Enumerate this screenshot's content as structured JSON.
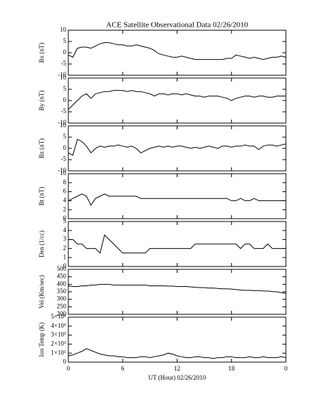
{
  "chart_data": [
    {
      "type": "line",
      "title": "ACE Satellite Observational Data   02/26/2010",
      "ylabel": "Bx (nT)",
      "color": "#000000",
      "x": [
        0,
        0.5,
        1,
        1.5,
        2,
        2.5,
        3,
        3.5,
        4,
        4.5,
        5,
        5.5,
        6,
        6.5,
        7,
        7.5,
        8,
        8.5,
        9,
        9.5,
        10,
        10.5,
        11,
        11.5,
        12,
        12.5,
        13,
        13.5,
        14,
        14.5,
        15,
        15.5,
        16,
        16.5,
        17,
        17.5,
        18,
        18.5,
        19,
        19.5,
        20,
        20.5,
        21,
        21.5,
        22,
        22.5,
        23,
        23.5,
        24
      ],
      "values": [
        -1,
        -2,
        2,
        2.5,
        2.5,
        2,
        3,
        4,
        4.5,
        4.5,
        4,
        3.5,
        3.5,
        3,
        3,
        3.5,
        3,
        2.5,
        2,
        1,
        -0.5,
        -1,
        -1.5,
        -2,
        -2,
        -1.5,
        -2,
        -2.5,
        -3,
        -3,
        -3,
        -3,
        -3,
        -3,
        -3,
        -2.5,
        -2.5,
        -1,
        -1.5,
        -2,
        -2.5,
        -2,
        -2.5,
        -3,
        -2.5,
        -2,
        -2,
        -1.5,
        -2
      ],
      "xlim": [
        0,
        24
      ],
      "xticks": [
        0,
        6,
        12,
        18,
        {
          "value": 24,
          "label": "0"
        }
      ],
      "ylim": [
        -10,
        10
      ],
      "yticks": [
        -10,
        -5,
        0,
        5,
        10
      ]
    },
    {
      "type": "line",
      "ylabel": "By (nT)",
      "color": "#000000",
      "x": [
        0,
        0.5,
        1,
        1.5,
        2,
        2.5,
        3,
        3.5,
        4,
        4.5,
        5,
        5.5,
        6,
        6.5,
        7,
        7.5,
        8,
        8.5,
        9,
        9.5,
        10,
        10.5,
        11,
        11.5,
        12,
        12.5,
        13,
        13.5,
        14,
        14.5,
        15,
        15.5,
        16,
        16.5,
        17,
        17.5,
        18,
        18.5,
        19,
        19.5,
        20,
        20.5,
        21,
        21.5,
        22,
        22.5,
        23,
        23.5,
        24
      ],
      "values": [
        -4,
        -2,
        0,
        2,
        3,
        1,
        3,
        3.5,
        4,
        4,
        4.5,
        4.5,
        4.5,
        4,
        4.5,
        4,
        4,
        3.5,
        3,
        2,
        3,
        3,
        2.5,
        3,
        3,
        2.5,
        3,
        2.5,
        2,
        2,
        1.5,
        2,
        2,
        2,
        1.5,
        1,
        0,
        1,
        1.5,
        2,
        2,
        1.5,
        2,
        2,
        1.5,
        1.5,
        2,
        2,
        2
      ],
      "xlim": [
        0,
        24
      ],
      "xticks": [
        0,
        6,
        12,
        18,
        {
          "value": 24,
          "label": "0"
        }
      ],
      "ylim": [
        -10,
        10
      ],
      "yticks": [
        -10,
        -5,
        0,
        5,
        10
      ]
    },
    {
      "type": "line",
      "ylabel": "Bz (nT)",
      "color": "#000000",
      "x": [
        0,
        0.5,
        1,
        1.5,
        2,
        2.5,
        3,
        3.5,
        4,
        4.5,
        5,
        5.5,
        6,
        6.5,
        7,
        7.5,
        8,
        8.5,
        9,
        9.5,
        10,
        10.5,
        11,
        11.5,
        12,
        12.5,
        13,
        13.5,
        14,
        14.5,
        15,
        15.5,
        16,
        16.5,
        17,
        17.5,
        18,
        18.5,
        19,
        19.5,
        20,
        20.5,
        21,
        21.5,
        22,
        22.5,
        23,
        23.5,
        24
      ],
      "values": [
        -2,
        -3,
        4,
        3,
        1,
        -2,
        0,
        1,
        0.5,
        1,
        1,
        1.5,
        1,
        0.5,
        1,
        0,
        -2,
        -1,
        0,
        0.5,
        1,
        0.5,
        1,
        0.5,
        1,
        1,
        0.5,
        0,
        0.5,
        0,
        0.5,
        1,
        0.5,
        0,
        1,
        1,
        0.5,
        1,
        1,
        1.5,
        1,
        1,
        -0.5,
        1,
        1.5,
        1.5,
        1,
        1.5,
        2
      ],
      "xlim": [
        0,
        24
      ],
      "xticks": [
        0,
        6,
        12,
        18,
        {
          "value": 24,
          "label": "0"
        }
      ],
      "ylim": [
        -10,
        10
      ],
      "yticks": [
        -10,
        -5,
        0,
        5,
        10
      ]
    },
    {
      "type": "line",
      "ylabel": "Bt (nT)",
      "color": "#000000",
      "x": [
        0,
        0.5,
        1,
        1.5,
        2,
        2.5,
        3,
        3.5,
        4,
        4.5,
        5,
        5.5,
        6,
        6.5,
        7,
        7.5,
        8,
        8.5,
        9,
        9.5,
        10,
        10.5,
        11,
        11.5,
        12,
        12.5,
        13,
        13.5,
        14,
        14.5,
        15,
        15.5,
        16,
        16.5,
        17,
        17.5,
        18,
        18.5,
        19,
        19.5,
        20,
        20.5,
        21,
        21.5,
        22,
        22.5,
        23,
        23.5,
        24
      ],
      "values": [
        4,
        4.5,
        5,
        5.5,
        5,
        3,
        4.5,
        5,
        5.5,
        5,
        5,
        5,
        5,
        5,
        5,
        5,
        4.5,
        4.5,
        4.5,
        4.5,
        4.5,
        4.5,
        4.5,
        4.5,
        4.5,
        4.5,
        4.5,
        4.5,
        4.5,
        4.5,
        4.5,
        4.5,
        4.5,
        4.5,
        4.5,
        4.5,
        4,
        4,
        4.5,
        4,
        4,
        4.5,
        4,
        4,
        4,
        4,
        4,
        4,
        4
      ],
      "xlim": [
        0,
        24
      ],
      "xticks": [
        0,
        6,
        12,
        18,
        {
          "value": 24,
          "label": "0"
        }
      ],
      "ylim": [
        0,
        10
      ],
      "yticks": [
        0,
        2,
        4,
        6,
        8,
        10
      ]
    },
    {
      "type": "line",
      "ylabel": "Den (1/cc)",
      "color": "#000000",
      "x": [
        0,
        0.5,
        1,
        1.5,
        2,
        2.5,
        3,
        3.5,
        4,
        4.5,
        5,
        5.5,
        6,
        6.5,
        7,
        7.5,
        8,
        8.5,
        9,
        9.5,
        10,
        10.5,
        11,
        11.5,
        12,
        12.5,
        13,
        13.5,
        14,
        14.5,
        15,
        15.5,
        16,
        16.5,
        17,
        17.5,
        18,
        18.5,
        19,
        19.5,
        20,
        20.5,
        21,
        21.5,
        22,
        22.5,
        23,
        23.5,
        24
      ],
      "values": [
        3,
        3,
        2.5,
        2.5,
        2,
        2,
        2,
        1.5,
        3.5,
        3,
        2.5,
        2,
        1.5,
        1.5,
        1.5,
        1.5,
        1.5,
        1.5,
        2,
        2,
        2,
        2,
        2,
        2,
        2,
        2,
        2,
        2,
        2.5,
        2.5,
        2.5,
        2.5,
        2.5,
        2.5,
        2.5,
        2.5,
        2.5,
        2.5,
        2,
        2.5,
        2.5,
        2,
        2,
        2,
        2.5,
        2,
        2,
        2,
        2
      ],
      "xlim": [
        0,
        24
      ],
      "xticks": [
        0,
        6,
        12,
        18,
        {
          "value": 24,
          "label": "0"
        }
      ],
      "ylim": [
        0,
        5
      ],
      "yticks": [
        0,
        1,
        2,
        3,
        4,
        5
      ]
    },
    {
      "type": "line",
      "ylabel": "Vel (Km/sec)",
      "color": "#000000",
      "x": [
        0,
        0.5,
        1,
        1.5,
        2,
        2.5,
        3,
        3.5,
        4,
        4.5,
        5,
        5.5,
        6,
        6.5,
        7,
        7.5,
        8,
        8.5,
        9,
        9.5,
        10,
        10.5,
        11,
        11.5,
        12,
        12.5,
        13,
        13.5,
        14,
        14.5,
        15,
        15.5,
        16,
        16.5,
        17,
        17.5,
        18,
        18.5,
        19,
        19.5,
        20,
        20.5,
        21,
        21.5,
        22,
        22.5,
        23,
        23.5,
        24
      ],
      "values": [
        390,
        385,
        385,
        390,
        390,
        395,
        395,
        400,
        400,
        400,
        395,
        395,
        395,
        395,
        395,
        395,
        395,
        395,
        390,
        390,
        390,
        390,
        388,
        388,
        385,
        385,
        385,
        383,
        380,
        378,
        378,
        375,
        375,
        372,
        370,
        370,
        368,
        365,
        362,
        360,
        360,
        358,
        358,
        355,
        355,
        352,
        350,
        345,
        340
      ],
      "xlim": [
        0,
        24
      ],
      "xticks": [
        0,
        6,
        12,
        18,
        {
          "value": 24,
          "label": "0"
        }
      ],
      "ylim": [
        200,
        500
      ],
      "yticks": [
        200,
        250,
        300,
        350,
        400,
        450,
        500
      ]
    },
    {
      "type": "line",
      "ylabel": "Ion Temp (K)",
      "xlabel": "UT (Hour)   02/26/2010",
      "color": "#000000",
      "x": [
        0,
        0.5,
        1,
        1.5,
        2,
        2.5,
        3,
        3.5,
        4,
        4.5,
        5,
        5.5,
        6,
        6.5,
        7,
        7.5,
        8,
        8.5,
        9,
        9.5,
        10,
        10.5,
        11,
        11.5,
        12,
        12.5,
        13,
        13.5,
        14,
        14.5,
        15,
        15.5,
        16,
        16.5,
        17,
        17.5,
        18,
        18.5,
        19,
        19.5,
        20,
        20.5,
        21,
        21.5,
        22,
        22.5,
        23,
        23.5,
        24
      ],
      "values": [
        70000,
        80000,
        100000,
        120000,
        150000,
        130000,
        110000,
        90000,
        80000,
        70000,
        70000,
        60000,
        60000,
        50000,
        50000,
        50000,
        60000,
        60000,
        50000,
        60000,
        70000,
        80000,
        100000,
        90000,
        70000,
        60000,
        50000,
        50000,
        60000,
        60000,
        50000,
        50000,
        40000,
        50000,
        50000,
        60000,
        60000,
        50000,
        50000,
        50000,
        60000,
        50000,
        50000,
        60000,
        50000,
        50000,
        50000,
        60000,
        50000
      ],
      "xlim": [
        0,
        24
      ],
      "xticks": [
        0,
        6,
        12,
        18,
        {
          "value": 24,
          "label": "0"
        }
      ],
      "ylim": [
        0,
        500000
      ],
      "yticks": [
        0,
        {
          "value": 100000,
          "label": "1×10⁵"
        },
        {
          "value": 200000,
          "label": "2×10⁵"
        },
        {
          "value": 300000,
          "label": "3×10⁵"
        },
        {
          "value": 400000,
          "label": "4×10⁵"
        },
        {
          "value": 500000,
          "label": "5×10⁵"
        }
      ]
    }
  ]
}
